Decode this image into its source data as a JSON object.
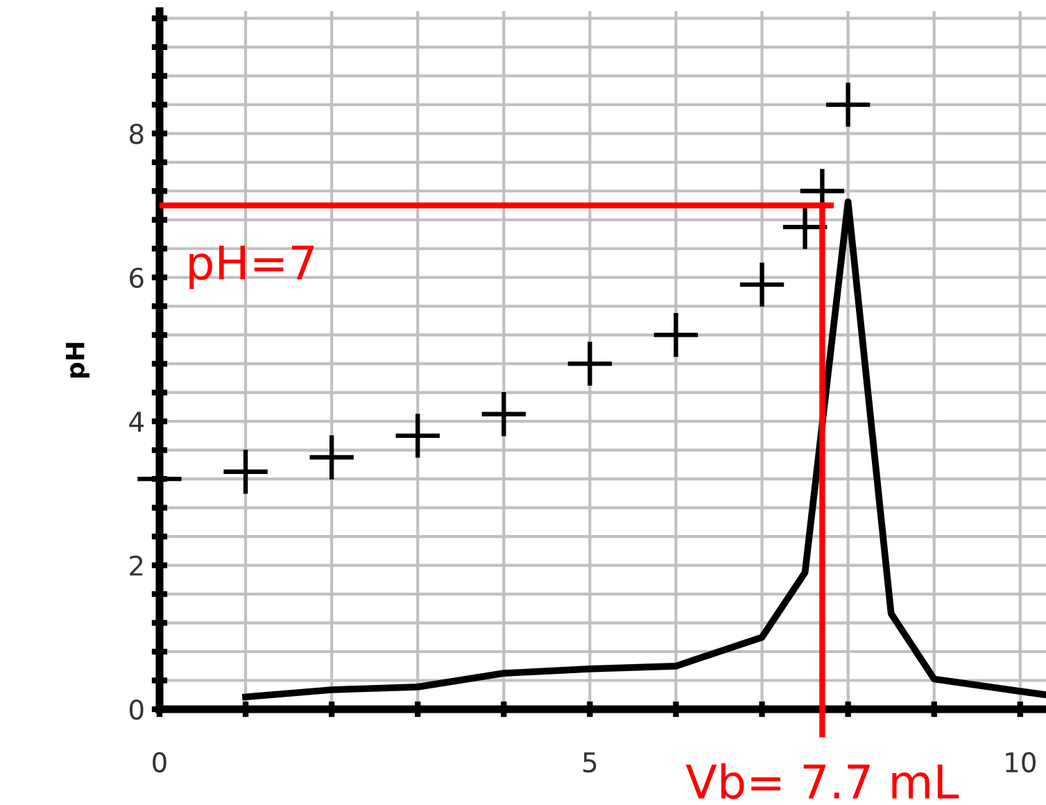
{
  "chart_data": {
    "type": "scatter",
    "ylabel": "pH",
    "xlim": [
      0,
      10.3
    ],
    "ylim": [
      0,
      9.7
    ],
    "xticks": [
      0,
      {
        "value": 1,
        "label": null
      },
      {
        "value": 2,
        "label": null
      },
      {
        "value": 3,
        "label": null
      },
      {
        "value": 4,
        "label": null
      },
      5,
      {
        "value": 6,
        "label": null
      },
      {
        "value": 7,
        "label": null
      },
      {
        "value": 8,
        "label": null
      },
      {
        "value": 9,
        "label": null
      },
      10
    ],
    "yticks": [
      0,
      {
        "value": 0.4,
        "label": null
      },
      {
        "value": 0.8,
        "label": null
      },
      {
        "value": 1.2,
        "label": null
      },
      {
        "value": 1.6,
        "label": null
      },
      2,
      {
        "value": 2.4,
        "label": null
      },
      {
        "value": 2.8,
        "label": null
      },
      {
        "value": 3.2,
        "label": null
      },
      {
        "value": 3.6,
        "label": null
      },
      4,
      {
        "value": 4.4,
        "label": null
      },
      {
        "value": 4.8,
        "label": null
      },
      {
        "value": 5.2,
        "label": null
      },
      {
        "value": 5.6,
        "label": null
      },
      6,
      {
        "value": 6.4,
        "label": null
      },
      {
        "value": 6.8,
        "label": null
      },
      {
        "value": 7.2,
        "label": null
      },
      {
        "value": 7.6,
        "label": null
      },
      8,
      {
        "value": 8.4,
        "label": null
      },
      {
        "value": 8.8,
        "label": null
      },
      {
        "value": 9.2,
        "label": null
      },
      {
        "value": 9.6,
        "label": null
      }
    ],
    "grid": true,
    "series": [
      {
        "marker": "cross",
        "color": "#000000",
        "x": [
          0,
          1,
          2,
          3,
          4,
          5,
          6,
          7,
          7.5,
          7.7,
          8
        ],
        "values": [
          3.2,
          3.3,
          3.5,
          3.8,
          4.1,
          4.8,
          5.2,
          5.9,
          6.7,
          7.2,
          8.4
        ]
      },
      {
        "type": "line",
        "marker": "none",
        "line_style": "solid",
        "color": "#000000",
        "x": [
          1,
          2,
          3,
          4,
          5,
          6,
          7,
          7.5,
          8,
          8.5,
          9,
          10,
          10.3
        ],
        "values": [
          0.17,
          0.27,
          0.31,
          0.5,
          0.56,
          0.6,
          1.0,
          1.9,
          7.05,
          1.33,
          0.42,
          0.25,
          0.2
        ]
      }
    ],
    "ref_lines": [
      {
        "axis": "y",
        "value": 7,
        "label": "pH=7",
        "color": "#ff0000",
        "line_style": "solid"
      },
      {
        "axis": "x",
        "value": 7.7,
        "label": "Vb= 7.7 mL",
        "color": "#ff0000",
        "line_style": "solid"
      }
    ]
  }
}
